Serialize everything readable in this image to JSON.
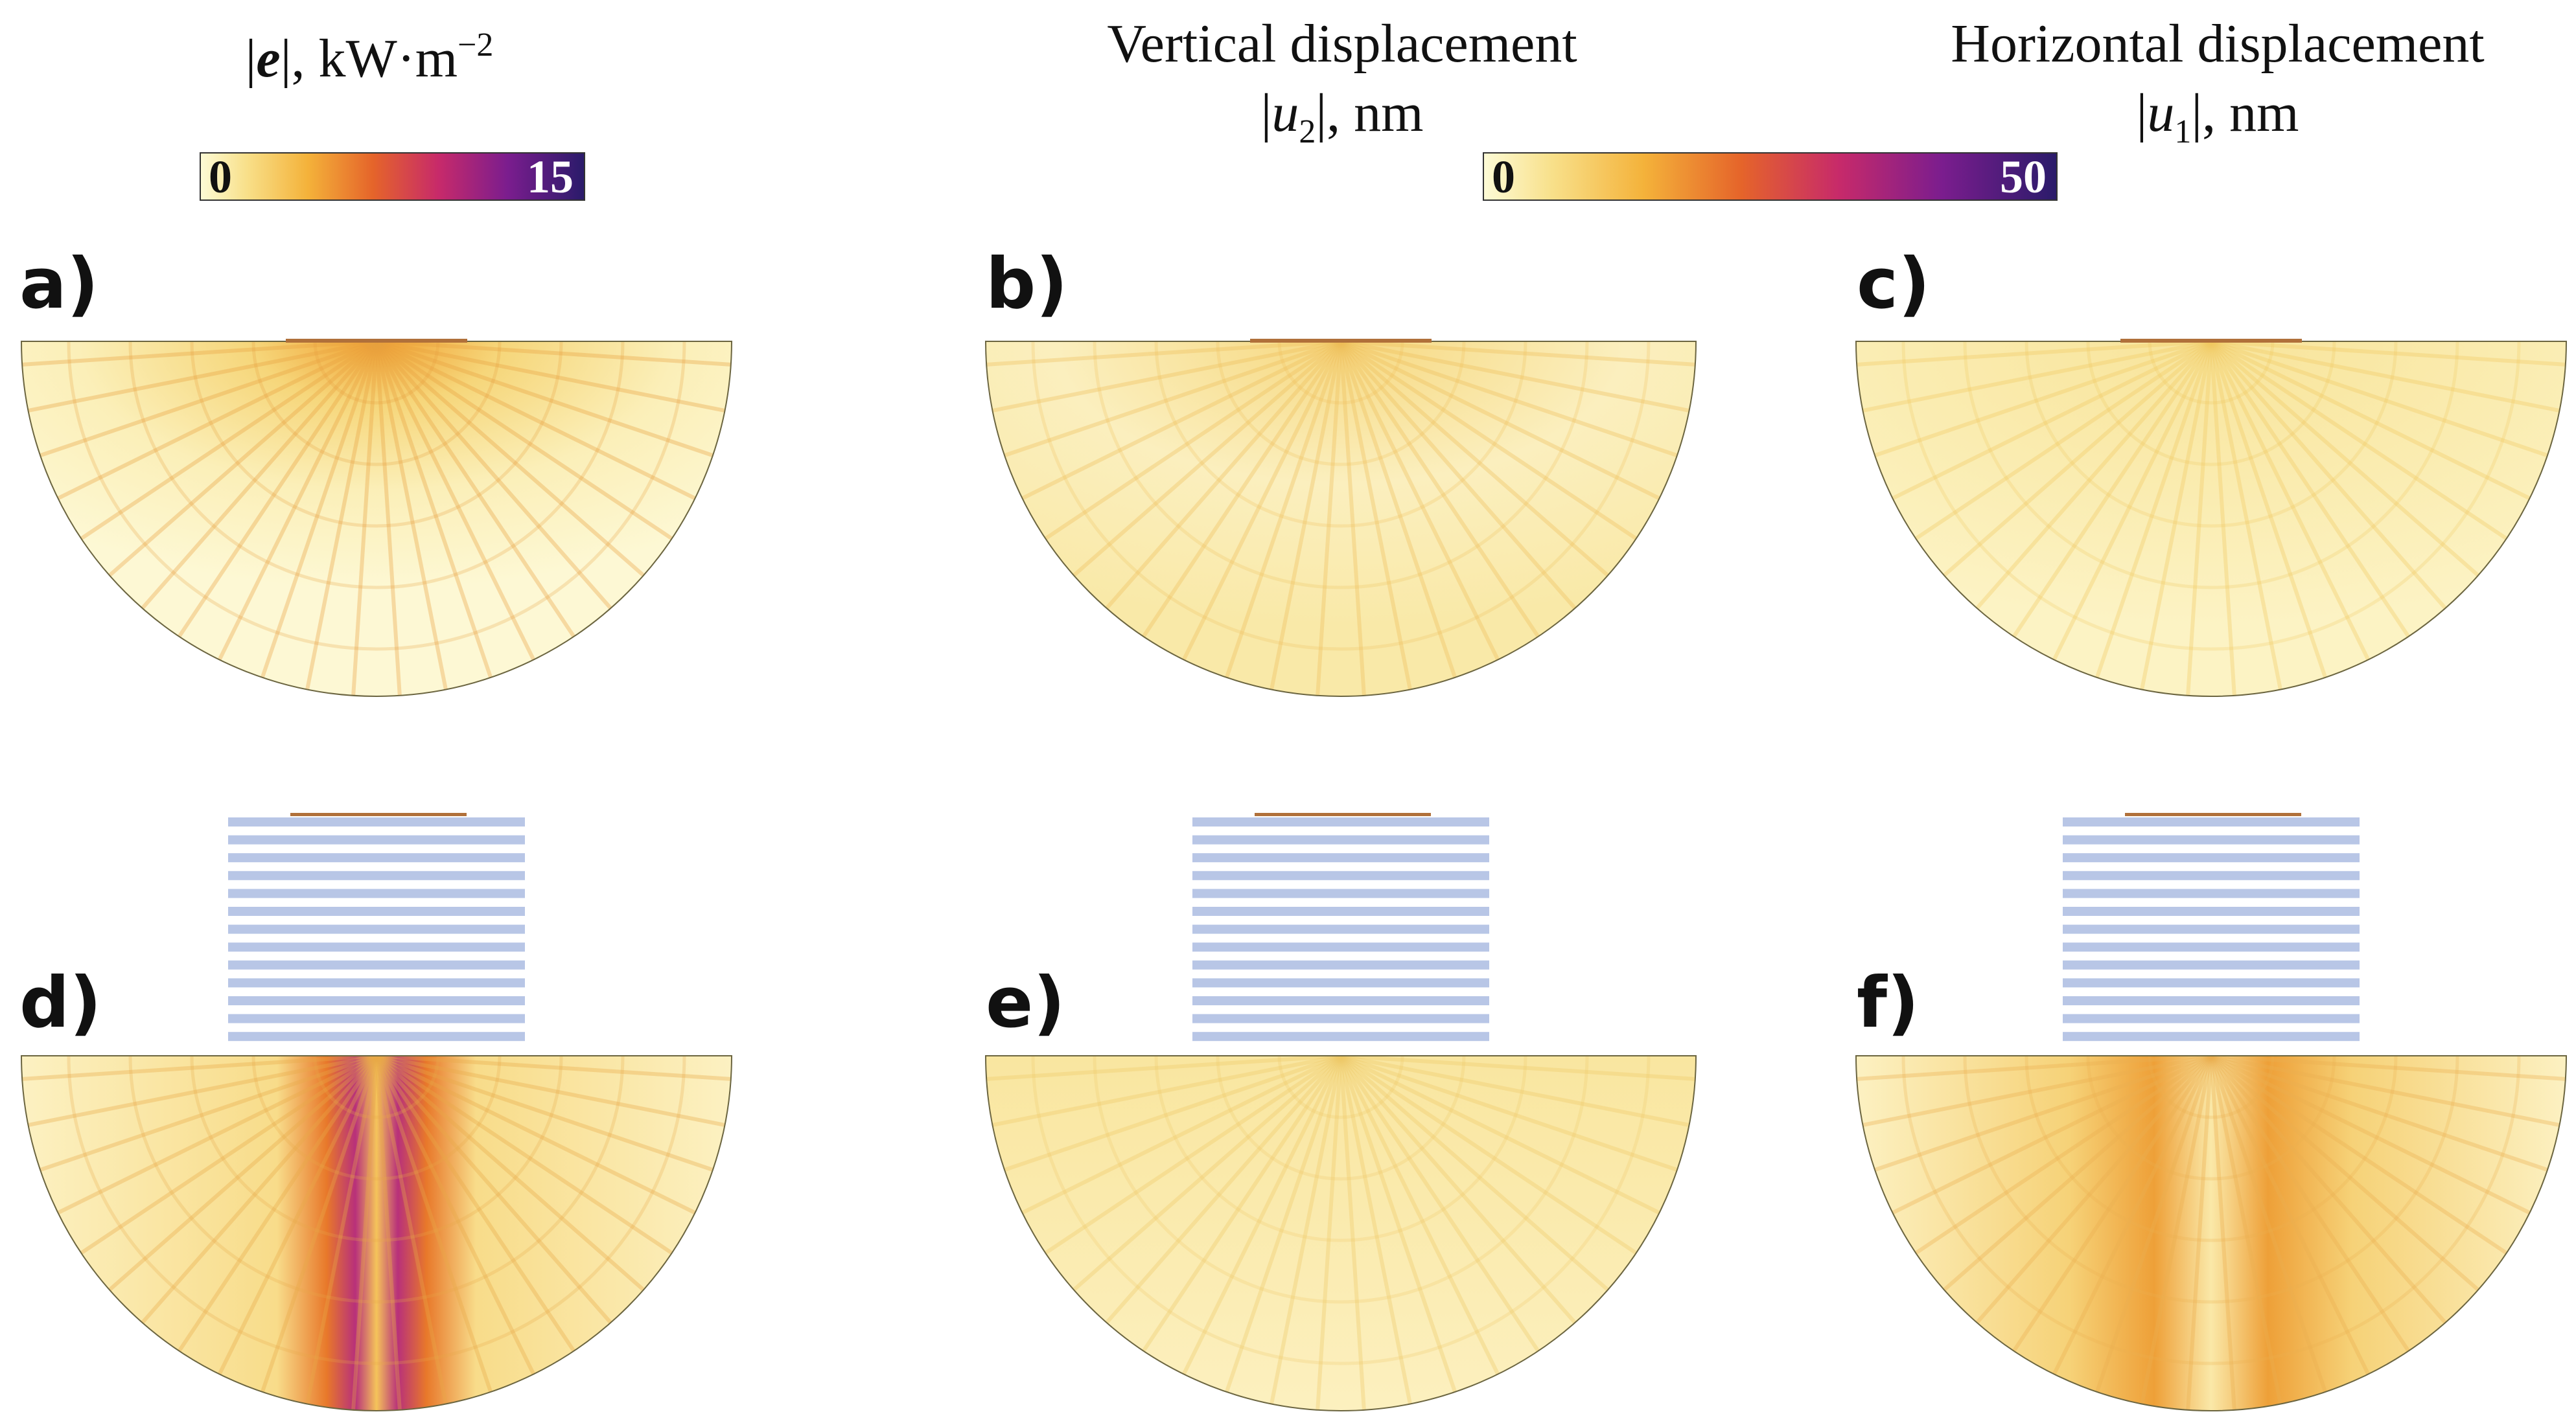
{
  "colorbars": [
    {
      "title": {
        "open": "|",
        "var": "e",
        "close": "|, kW·m",
        "sup": "−2"
      },
      "min_label": "0",
      "max_label": "15"
    },
    {
      "title_left": {
        "line1": "Vertical displacement",
        "open": "|",
        "var": "u",
        "sub": "2",
        "close": "|, nm"
      },
      "title_right": {
        "line1": "Horizontal displacement",
        "open": "|",
        "var": "u",
        "sub": "1",
        "close": "|, nm"
      },
      "min_label": "0",
      "max_label": "50"
    }
  ],
  "panels": [
    "a)",
    "b)",
    "c)",
    "d)",
    "e)",
    "f)"
  ]
}
